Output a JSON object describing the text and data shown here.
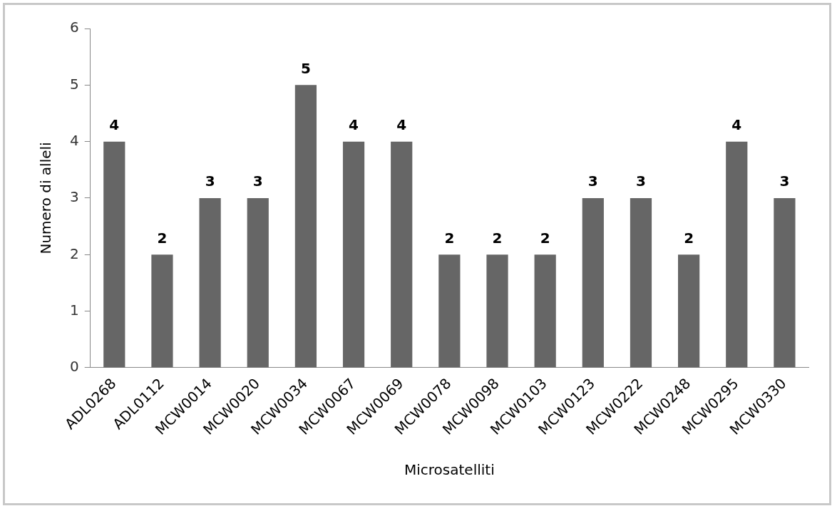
{
  "chart_data": {
    "type": "bar",
    "xlabel": "Microsatelliti",
    "ylabel": "Numero di alleli",
    "categories": [
      "ADL0268",
      "ADL0112",
      "MCW0014",
      "MCW0020",
      "MCW0034",
      "MCW0067",
      "MCW0069",
      "MCW0078",
      "MCW0098",
      "MCW0103",
      "MCW0123",
      "MCW0222",
      "MCW0248",
      "MCW0295",
      "MCW0330"
    ],
    "values": [
      4,
      2,
      3,
      3,
      5,
      4,
      4,
      2,
      2,
      2,
      3,
      3,
      2,
      4,
      3
    ],
    "color": "#666666",
    "ylim": [
      0,
      6
    ],
    "yticks": [
      0,
      1,
      2,
      3,
      4,
      5,
      6
    ],
    "grid": false,
    "legend": false,
    "data_labels": true
  }
}
